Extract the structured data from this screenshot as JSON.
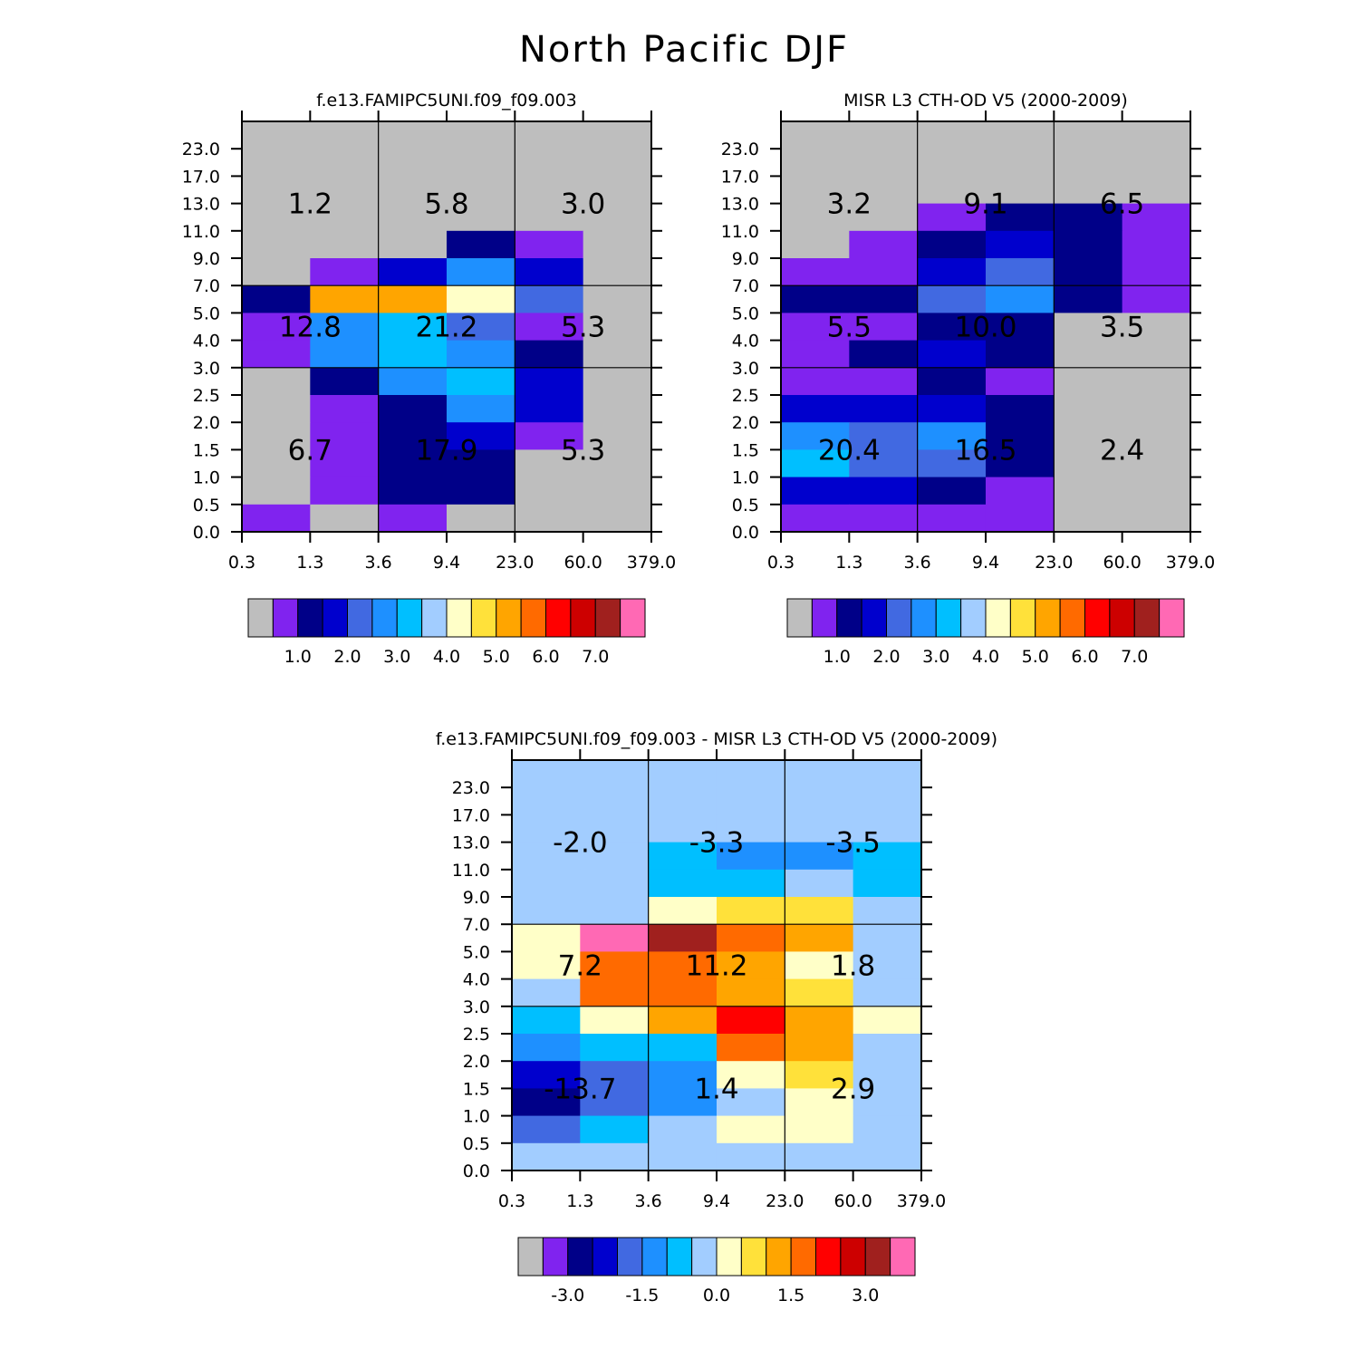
{
  "title": "North Pacific DJF",
  "colors": {
    "grey": "#bebebe",
    "purple": "#8023ef",
    "navy": "#000088",
    "blue": "#0000cd",
    "royal": "#4169e1",
    "dodger": "#1e90ff",
    "sky": "#00bfff",
    "light": "#a2cdff",
    "cream": "#ffffc8",
    "yellow": "#ffe13a",
    "orange": "#ffa500",
    "darkorange": "#ff6a00",
    "red": "#ff0000",
    "crimson": "#cd0000",
    "brown": "#a0201e",
    "pink": "#ff69b4"
  },
  "chart_data": [
    {
      "type": "heatmap",
      "title": "f.e13.FAMIPC5UNI.f09_f09.003",
      "xlabel": "",
      "ylabel": "",
      "x_ticks": [
        "0.3",
        "1.3",
        "3.6",
        "9.4",
        "23.0",
        "60.0",
        "379.0"
      ],
      "y_ticks": [
        "0.0",
        "0.5",
        "1.0",
        "1.5",
        "2.0",
        "2.5",
        "3.0",
        "4.0",
        "5.0",
        "7.0",
        "9.0",
        "11.0",
        "13.0",
        "17.0",
        "23.0"
      ],
      "colorbar_labels": [
        "1.0",
        "2.0",
        "3.0",
        "4.0",
        "5.0",
        "6.0",
        "7.0"
      ],
      "cells_top_down": [
        [
          "grey",
          "grey",
          "grey",
          "grey",
          "grey",
          "grey"
        ],
        [
          "grey",
          "grey",
          "grey",
          "grey",
          "grey",
          "grey"
        ],
        [
          "grey",
          "grey",
          "grey",
          "grey",
          "grey",
          "grey"
        ],
        [
          "grey",
          "grey",
          "grey",
          "grey",
          "grey",
          "grey"
        ],
        [
          "grey",
          "grey",
          "grey",
          "navy",
          "purple",
          "grey"
        ],
        [
          "grey",
          "purple",
          "blue",
          "dodger",
          "blue",
          "grey"
        ],
        [
          "navy",
          "orange",
          "orange",
          "cream",
          "royal",
          "grey"
        ],
        [
          "purple",
          "dodger",
          "sky",
          "royal",
          "purple",
          "grey"
        ],
        [
          "purple",
          "dodger",
          "sky",
          "dodger",
          "navy",
          "grey"
        ],
        [
          "grey",
          "navy",
          "dodger",
          "sky",
          "blue",
          "grey"
        ],
        [
          "grey",
          "purple",
          "navy",
          "dodger",
          "blue",
          "grey"
        ],
        [
          "grey",
          "purple",
          "navy",
          "blue",
          "purple",
          "grey"
        ],
        [
          "grey",
          "purple",
          "navy",
          "navy",
          "grey",
          "grey"
        ],
        [
          "grey",
          "purple",
          "navy",
          "navy",
          "grey",
          "grey"
        ],
        [
          "purple",
          "grey",
          "purple",
          "grey",
          "grey",
          "grey"
        ]
      ],
      "region_values": [
        [
          "1.2",
          "5.8",
          "3.0"
        ],
        [
          "12.8",
          "21.2",
          "5.3"
        ],
        [
          "6.7",
          "17.9",
          "5.3"
        ]
      ]
    },
    {
      "type": "heatmap",
      "title": "MISR L3 CTH-OD V5 (2000-2009)",
      "xlabel": "",
      "ylabel": "",
      "x_ticks": [
        "0.3",
        "1.3",
        "3.6",
        "9.4",
        "23.0",
        "60.0",
        "379.0"
      ],
      "y_ticks": [
        "0.0",
        "0.5",
        "1.0",
        "1.5",
        "2.0",
        "2.5",
        "3.0",
        "4.0",
        "5.0",
        "7.0",
        "9.0",
        "11.0",
        "13.0",
        "17.0",
        "23.0"
      ],
      "colorbar_labels": [
        "1.0",
        "2.0",
        "3.0",
        "4.0",
        "5.0",
        "6.0",
        "7.0"
      ],
      "cells_top_down": [
        [
          "grey",
          "grey",
          "grey",
          "grey",
          "grey",
          "grey"
        ],
        [
          "grey",
          "grey",
          "grey",
          "grey",
          "grey",
          "grey"
        ],
        [
          "grey",
          "grey",
          "grey",
          "grey",
          "grey",
          "grey"
        ],
        [
          "grey",
          "grey",
          "purple",
          "navy",
          "navy",
          "purple"
        ],
        [
          "grey",
          "purple",
          "navy",
          "blue",
          "navy",
          "purple"
        ],
        [
          "purple",
          "purple",
          "blue",
          "royal",
          "navy",
          "purple"
        ],
        [
          "navy",
          "navy",
          "royal",
          "dodger",
          "navy",
          "purple"
        ],
        [
          "purple",
          "purple",
          "navy",
          "navy",
          "grey",
          "grey"
        ],
        [
          "purple",
          "navy",
          "blue",
          "navy",
          "grey",
          "grey"
        ],
        [
          "purple",
          "purple",
          "navy",
          "purple",
          "grey",
          "grey"
        ],
        [
          "blue",
          "blue",
          "blue",
          "navy",
          "grey",
          "grey"
        ],
        [
          "dodger",
          "royal",
          "dodger",
          "navy",
          "grey",
          "grey"
        ],
        [
          "sky",
          "royal",
          "royal",
          "navy",
          "grey",
          "grey"
        ],
        [
          "blue",
          "blue",
          "navy",
          "purple",
          "grey",
          "grey"
        ],
        [
          "purple",
          "purple",
          "purple",
          "purple",
          "grey",
          "grey"
        ]
      ],
      "region_values": [
        [
          "3.2",
          "9.1",
          "6.5"
        ],
        [
          "5.5",
          "10.0",
          "3.5"
        ],
        [
          "20.4",
          "16.5",
          "2.4"
        ]
      ]
    },
    {
      "type": "heatmap",
      "title": "f.e13.FAMIPC5UNI.f09_f09.003 - MISR L3 CTH-OD V5 (2000-2009)",
      "xlabel": "",
      "ylabel": "",
      "x_ticks": [
        "0.3",
        "1.3",
        "3.6",
        "9.4",
        "23.0",
        "60.0",
        "379.0"
      ],
      "y_ticks": [
        "0.0",
        "0.5",
        "1.0",
        "1.5",
        "2.0",
        "2.5",
        "3.0",
        "4.0",
        "5.0",
        "7.0",
        "9.0",
        "11.0",
        "13.0",
        "17.0",
        "23.0"
      ],
      "colorbar_labels": [
        "-3.0",
        "-1.5",
        "0.0",
        "1.5",
        "3.0"
      ],
      "cells_top_down": [
        [
          "light",
          "light",
          "light",
          "light",
          "light",
          "light"
        ],
        [
          "light",
          "light",
          "light",
          "light",
          "light",
          "light"
        ],
        [
          "light",
          "light",
          "light",
          "light",
          "light",
          "light"
        ],
        [
          "light",
          "light",
          "sky",
          "dodger",
          "dodger",
          "sky"
        ],
        [
          "light",
          "light",
          "sky",
          "sky",
          "light",
          "sky"
        ],
        [
          "light",
          "light",
          "cream",
          "yellow",
          "yellow",
          "light"
        ],
        [
          "cream",
          "pink",
          "brown",
          "darkorange",
          "orange",
          "light"
        ],
        [
          "cream",
          "darkorange",
          "darkorange",
          "orange",
          "cream",
          "light"
        ],
        [
          "light",
          "darkorange",
          "darkorange",
          "orange",
          "yellow",
          "light"
        ],
        [
          "sky",
          "cream",
          "orange",
          "red",
          "orange",
          "cream"
        ],
        [
          "dodger",
          "sky",
          "sky",
          "darkorange",
          "orange",
          "light"
        ],
        [
          "blue",
          "royal",
          "dodger",
          "cream",
          "yellow",
          "light"
        ],
        [
          "navy",
          "royal",
          "dodger",
          "light",
          "cream",
          "light"
        ],
        [
          "royal",
          "sky",
          "light",
          "cream",
          "cream",
          "light"
        ],
        [
          "light",
          "light",
          "light",
          "light",
          "light",
          "light"
        ]
      ],
      "region_values": [
        [
          "-2.0",
          "-3.3",
          "-3.5"
        ],
        [
          "7.2",
          "11.2",
          "1.8"
        ],
        [
          "-13.7",
          "1.4",
          "2.9"
        ]
      ]
    }
  ],
  "colorbar_order": [
    "grey",
    "purple",
    "navy",
    "blue",
    "royal",
    "dodger",
    "sky",
    "light",
    "cream",
    "yellow",
    "orange",
    "darkorange",
    "red",
    "crimson",
    "brown",
    "pink"
  ]
}
